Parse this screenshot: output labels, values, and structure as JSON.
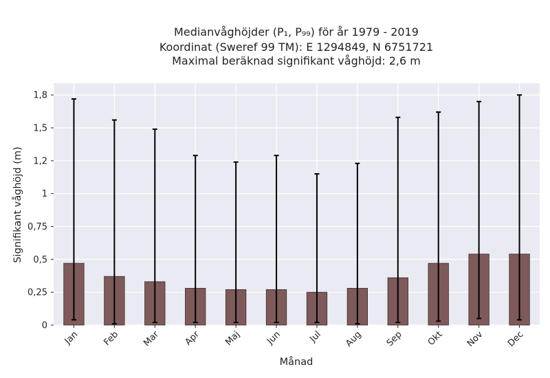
{
  "chart_data": {
    "type": "bar",
    "title_lines": [
      "Medianvåghöjder (P₁, P₉₉) för år 1979 - 2019",
      "Koordinat (Sweref 99 TM): E 1294849, N 6751721",
      "Maximal beräknad signifikant våghöjd: 2,6 m"
    ],
    "xlabel": "Månad",
    "ylabel": "Signifikant våghöjd (m)",
    "categories": [
      "Jan",
      "Feb",
      "Mar",
      "Apr",
      "Maj",
      "Jun",
      "Jul",
      "Aug",
      "Sep",
      "Okt",
      "Nov",
      "Dec"
    ],
    "values": [
      0.47,
      0.37,
      0.33,
      0.28,
      0.27,
      0.27,
      0.25,
      0.28,
      0.36,
      0.47,
      0.54,
      0.54
    ],
    "error_low": [
      0.04,
      0.01,
      0.02,
      0.02,
      0.02,
      0.02,
      0.02,
      0.01,
      0.02,
      0.03,
      0.05,
      0.04
    ],
    "error_high": [
      1.72,
      1.56,
      1.49,
      1.29,
      1.24,
      1.29,
      1.15,
      1.23,
      1.58,
      1.62,
      1.7,
      1.75
    ],
    "ylim": [
      0,
      1.84
    ],
    "yticks": [
      0,
      0.25,
      0.5,
      0.75,
      1,
      1.25,
      1.5,
      1.75
    ],
    "ytick_labels": [
      "0",
      "0,25",
      "0,5",
      "0,75",
      "1",
      "1,2",
      "1,5",
      "1,8"
    ],
    "grid": true,
    "colors": {
      "bar_fill": "#7f5a5a",
      "bar_edge": "#3a2a2a",
      "error_bar": "#000000",
      "plot_background": "#eaeaf2",
      "grid": "#ffffff"
    }
  }
}
